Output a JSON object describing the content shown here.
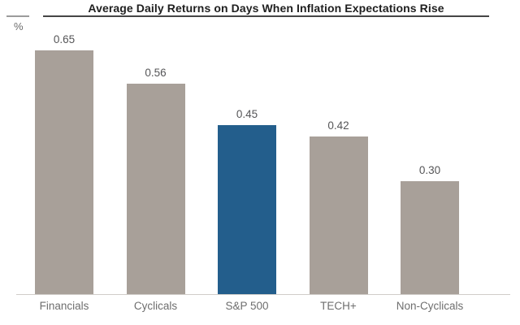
{
  "title": "Average Daily Returns on Days When Inflation Expectations Rise",
  "y_axis_unit": "%",
  "chart_data": {
    "type": "bar",
    "title": "Average Daily Returns on Days When Inflation Expectations Rise",
    "categories": [
      "Financials",
      "Cyclicals",
      "S&P 500",
      "TECH+",
      "Non-Cyclicals"
    ],
    "values": [
      0.65,
      0.56,
      0.45,
      0.42,
      0.3
    ],
    "value_labels": [
      "0.65",
      "0.56",
      "0.45",
      "0.42",
      "0.30"
    ],
    "xlabel": "",
    "ylabel": "%",
    "ylim": [
      0,
      0.7
    ],
    "grid": false,
    "legend": false,
    "highlight_category": "S&P 500",
    "highlight_index": 2,
    "colors": {
      "bar": "#a8a099",
      "highlight": "#235e8c"
    }
  }
}
